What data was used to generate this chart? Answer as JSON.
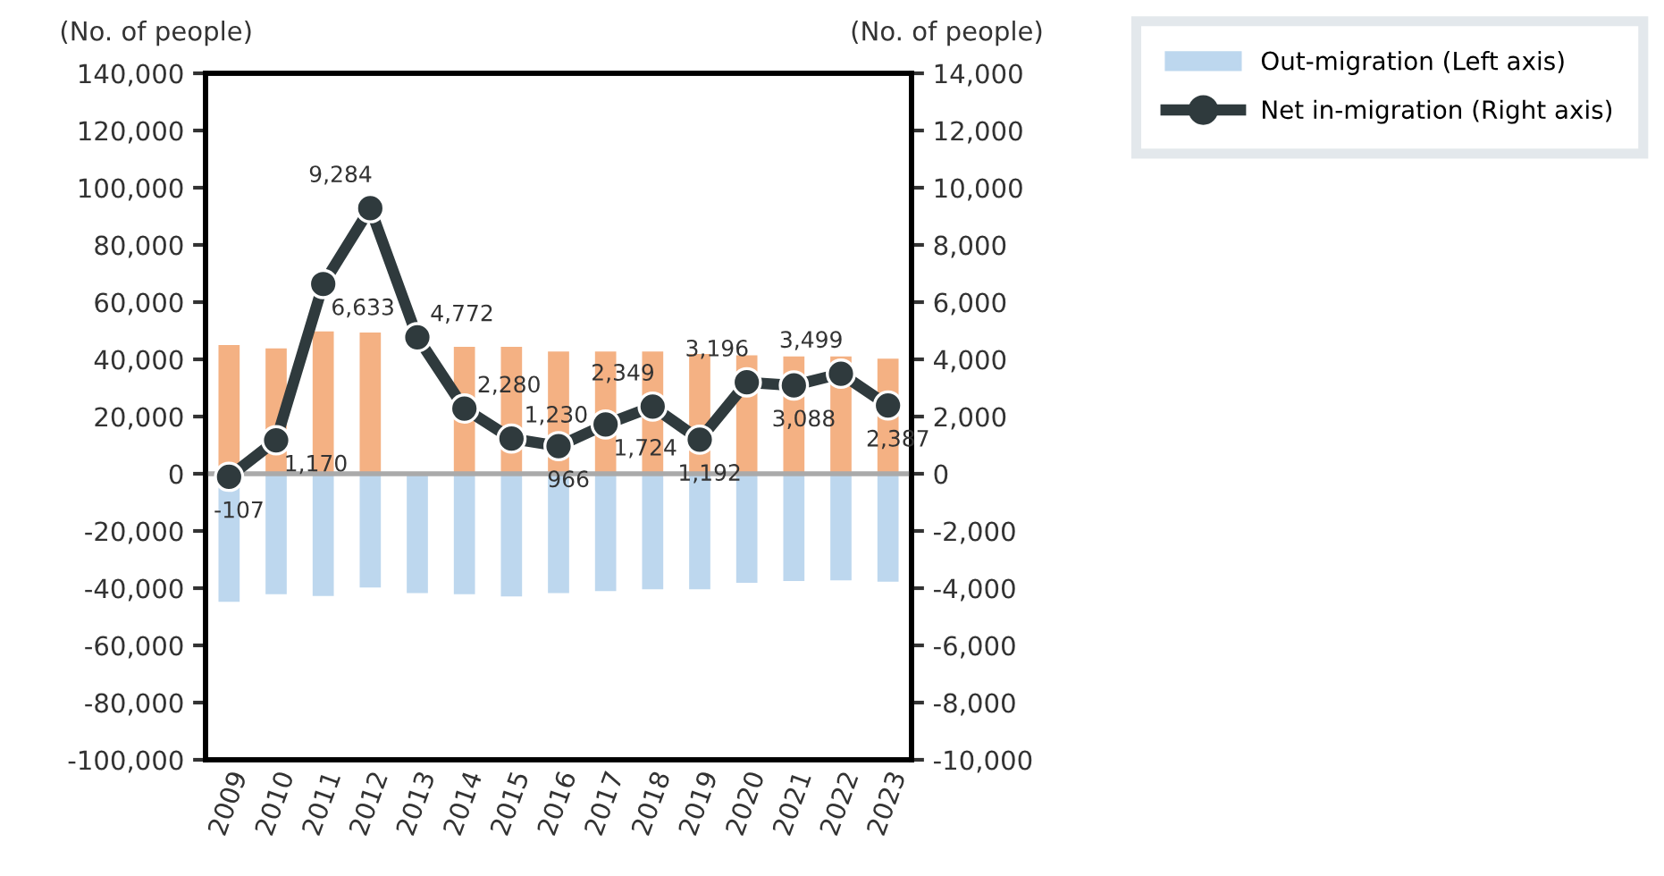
{
  "chart_data": {
    "type": "bar",
    "ylabel": "(No. of people)",
    "y2label": "(No. of people)",
    "categories": [
      "2009",
      "2010",
      "2011",
      "2012",
      "2013",
      "2014",
      "2015",
      "2016",
      "2017",
      "2018",
      "2019",
      "2020",
      "2021",
      "2022",
      "2023"
    ],
    "stacked": true,
    "ref_lines": [
      {
        "axis": "y",
        "value": 0,
        "color": "#aaaaaa"
      }
    ],
    "series": [
      {
        "color": "#f4b183",
        "values": [
          45000,
          43800,
          49800,
          49400,
          null,
          44400,
          44400,
          42700,
          42700,
          42700,
          41900,
          41400,
          41000,
          41000,
          40200
        ]
      },
      {
        "name": "Out-migration (Left axis)",
        "color": "#bdd7ee",
        "values": [
          -44800,
          -42100,
          -42700,
          -39800,
          -41700,
          -42100,
          -42900,
          -41700,
          -41000,
          -40400,
          -40400,
          -38100,
          -37500,
          -37300,
          -37700
        ]
      },
      {
        "name": "Net in-migration (Right axis)",
        "type": "line",
        "axis": "y2",
        "color": "#2f3a3d",
        "marker": "circle",
        "value_labels": [
          "-107",
          "1,170",
          "6,633",
          "9,284",
          "4,772",
          "2,280",
          "1,230",
          "966",
          "1,724",
          "2,349",
          "1,192",
          "3,196",
          "3,088",
          "3,499",
          "2,387"
        ],
        "values": [
          -107,
          1170,
          6633,
          9284,
          4772,
          2280,
          1230,
          966,
          1724,
          2349,
          1192,
          3196,
          3088,
          3499,
          2387
        ]
      }
    ],
    "ylim": [
      -100000,
      140000
    ],
    "yticks": [
      {
        "value": -100000,
        "label": "-100,000"
      },
      {
        "value": -80000,
        "label": "-80,000"
      },
      {
        "value": -60000,
        "label": "-60,000"
      },
      {
        "value": -40000,
        "label": "-40,000"
      },
      {
        "value": -20000,
        "label": "-20,000"
      },
      {
        "value": 0,
        "label": "0"
      },
      {
        "value": 20000,
        "label": "20,000"
      },
      {
        "value": 40000,
        "label": "40,000"
      },
      {
        "value": 60000,
        "label": "60,000"
      },
      {
        "value": 80000,
        "label": "80,000"
      },
      {
        "value": 100000,
        "label": "100,000"
      },
      {
        "value": 120000,
        "label": "120,000"
      },
      {
        "value": 140000,
        "label": "140,000"
      }
    ],
    "y2lim": [
      -10000,
      14000
    ],
    "y2ticks": [
      {
        "value": -10000,
        "label": "-10,000"
      },
      {
        "value": -8000,
        "label": "-8,000"
      },
      {
        "value": -6000,
        "label": "-6,000"
      },
      {
        "value": -4000,
        "label": "-4,000"
      },
      {
        "value": -2000,
        "label": "-2,000"
      },
      {
        "value": 0,
        "label": "0"
      },
      {
        "value": 2000,
        "label": "2,000"
      },
      {
        "value": 4000,
        "label": "4,000"
      },
      {
        "value": 6000,
        "label": "6,000"
      },
      {
        "value": 8000,
        "label": "8,000"
      },
      {
        "value": 10000,
        "label": "10,000"
      },
      {
        "value": 12000,
        "label": "12,000"
      },
      {
        "value": 14000,
        "label": "14,000"
      }
    ],
    "grid": false,
    "legend": "top right"
  }
}
